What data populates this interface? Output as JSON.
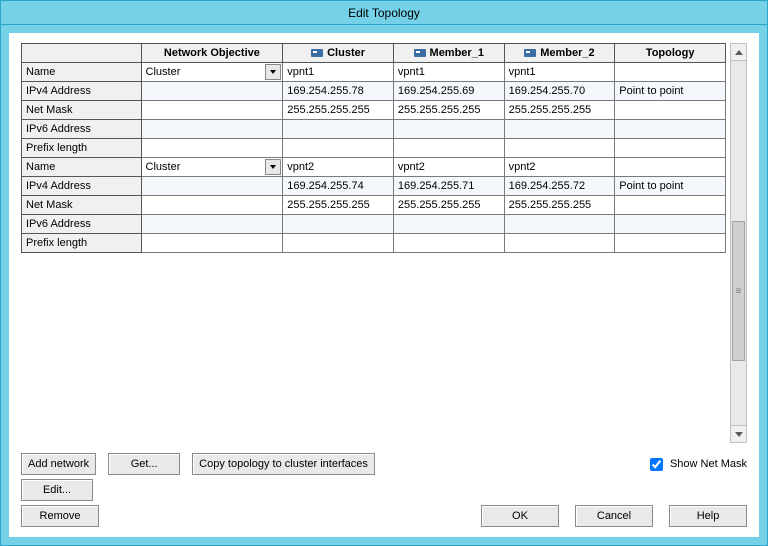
{
  "window": {
    "title": "Edit Topology"
  },
  "columns": {
    "network_objective": "Network Objective",
    "cluster": "Cluster",
    "member1": "Member_1",
    "member2": "Member_2",
    "topology": "Topology"
  },
  "row_labels": {
    "name": "Name",
    "ipv4": "IPv4 Address",
    "netmask": "Net Mask",
    "ipv6": "IPv6 Address",
    "prefix": "Prefix length"
  },
  "groups": [
    {
      "network_objective": "Cluster",
      "name": {
        "cluster": "vpnt1",
        "m1": "vpnt1",
        "m2": "vpnt1",
        "topology": ""
      },
      "ipv4": {
        "cluster": "169.254.255.78",
        "m1": "169.254.255.69",
        "m2": "169.254.255.70",
        "topology": "Point to point"
      },
      "netmask": {
        "cluster": "255.255.255.255",
        "m1": "255.255.255.255",
        "m2": "255.255.255.255",
        "topology": ""
      },
      "ipv6": {
        "cluster": "",
        "m1": "",
        "m2": "",
        "topology": ""
      },
      "prefix": {
        "cluster": "",
        "m1": "",
        "m2": "",
        "topology": ""
      }
    },
    {
      "network_objective": "Cluster",
      "name": {
        "cluster": "vpnt2",
        "m1": "vpnt2",
        "m2": "vpnt2",
        "topology": ""
      },
      "ipv4": {
        "cluster": "169.254.255.74",
        "m1": "169.254.255.71",
        "m2": "169.254.255.72",
        "topology": "Point to point"
      },
      "netmask": {
        "cluster": "255.255.255.255",
        "m1": "255.255.255.255",
        "m2": "255.255.255.255",
        "topology": ""
      },
      "ipv6": {
        "cluster": "",
        "m1": "",
        "m2": "",
        "topology": ""
      },
      "prefix": {
        "cluster": "",
        "m1": "",
        "m2": "",
        "topology": ""
      }
    }
  ],
  "buttons": {
    "add_network": "Add network",
    "get": "Get...",
    "copy_topology": "Copy topology to cluster interfaces",
    "edit": "Edit...",
    "remove": "Remove",
    "ok": "OK",
    "cancel": "Cancel",
    "help": "Help"
  },
  "checkbox": {
    "show_net_mask_label": "Show Net Mask",
    "show_net_mask_checked": true
  },
  "style": {
    "accent": "#75d1e8",
    "border": "#2da3c7",
    "grid_border": "#7a7a7a",
    "header_bg": "#f0f0f0",
    "alt_row_bg": "#f4f7fb"
  }
}
